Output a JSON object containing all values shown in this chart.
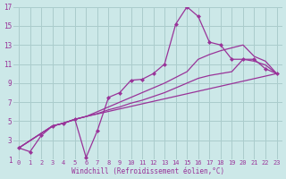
{
  "bg_color": "#cce8e8",
  "grid_color": "#aacccc",
  "line_color": "#993399",
  "xlabel": "Windchill (Refroidissement éolien,°C)",
  "xlim": [
    -0.5,
    23.5
  ],
  "ylim": [
    1,
    17
  ],
  "xticks": [
    0,
    1,
    2,
    3,
    4,
    5,
    6,
    7,
    8,
    9,
    10,
    11,
    12,
    13,
    14,
    15,
    16,
    17,
    18,
    19,
    20,
    21,
    22,
    23
  ],
  "yticks": [
    1,
    3,
    5,
    7,
    9,
    11,
    13,
    15,
    17
  ],
  "s0x": [
    0,
    1,
    2,
    3,
    4,
    5,
    6,
    7,
    8,
    9,
    10,
    11,
    12,
    13,
    14,
    15,
    16,
    17,
    18,
    19,
    20,
    21,
    22,
    23
  ],
  "s0y": [
    2.2,
    1.8,
    3.5,
    4.5,
    4.8,
    5.2,
    1.2,
    4.0,
    7.5,
    8.0,
    9.3,
    9.4,
    10.0,
    11.0,
    15.2,
    17.0,
    16.0,
    13.3,
    13.0,
    11.5,
    11.5,
    11.5,
    10.5,
    10.0
  ],
  "s1x": [
    0,
    3,
    4,
    5,
    6,
    7,
    8,
    9,
    10,
    11,
    12,
    13,
    14,
    15,
    16,
    17,
    18,
    19,
    20,
    21,
    22,
    23
  ],
  "s1y": [
    2.2,
    4.5,
    4.8,
    5.2,
    5.5,
    6.0,
    6.5,
    7.0,
    7.5,
    8.0,
    8.5,
    9.0,
    9.6,
    10.2,
    11.5,
    12.0,
    12.4,
    12.7,
    13.0,
    11.8,
    11.3,
    10.0
  ],
  "s2x": [
    0,
    3,
    4,
    5,
    6,
    7,
    8,
    9,
    10,
    11,
    12,
    13,
    14,
    15,
    16,
    17,
    18,
    19,
    20,
    21,
    22,
    23
  ],
  "s2y": [
    2.2,
    4.5,
    4.8,
    5.2,
    5.5,
    5.8,
    6.2,
    6.5,
    6.9,
    7.2,
    7.6,
    8.0,
    8.5,
    9.0,
    9.5,
    9.8,
    10.0,
    10.2,
    11.5,
    11.3,
    10.9,
    10.0
  ],
  "s3x": [
    0,
    3,
    4,
    5,
    6,
    23
  ],
  "s3y": [
    2.2,
    4.5,
    4.8,
    5.2,
    5.5,
    10.0
  ]
}
